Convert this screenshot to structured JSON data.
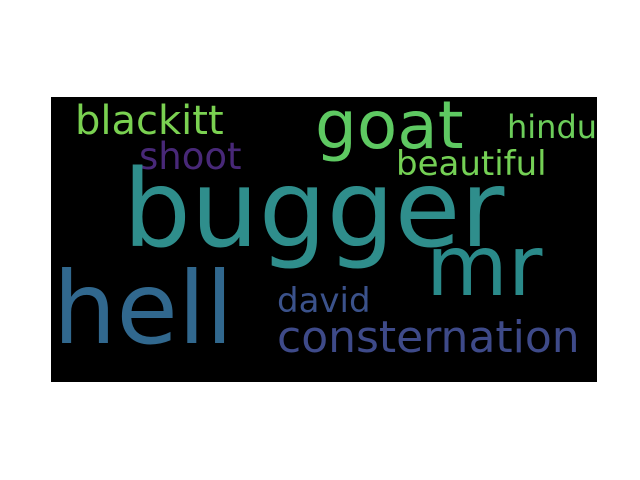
{
  "words": {
    "bugger": {
      "text": "bugger",
      "color": "#2f8e8c"
    },
    "goat": {
      "text": "goat",
      "color": "#5ec962"
    },
    "blackitt": {
      "text": "blackitt",
      "color": "#7ad151"
    },
    "hindu": {
      "text": "hindu",
      "color": "#6ccd5a"
    },
    "shoot": {
      "text": "shoot",
      "color": "#482878"
    },
    "beautiful": {
      "text": "beautiful",
      "color": "#74d055"
    },
    "mr": {
      "text": "mr",
      "color": "#2a8a8a"
    },
    "hell": {
      "text": "hell",
      "color": "#31688e"
    },
    "david": {
      "text": "david",
      "color": "#3b528b"
    },
    "consternation": {
      "text": "consternation",
      "color": "#3e4a89"
    }
  }
}
